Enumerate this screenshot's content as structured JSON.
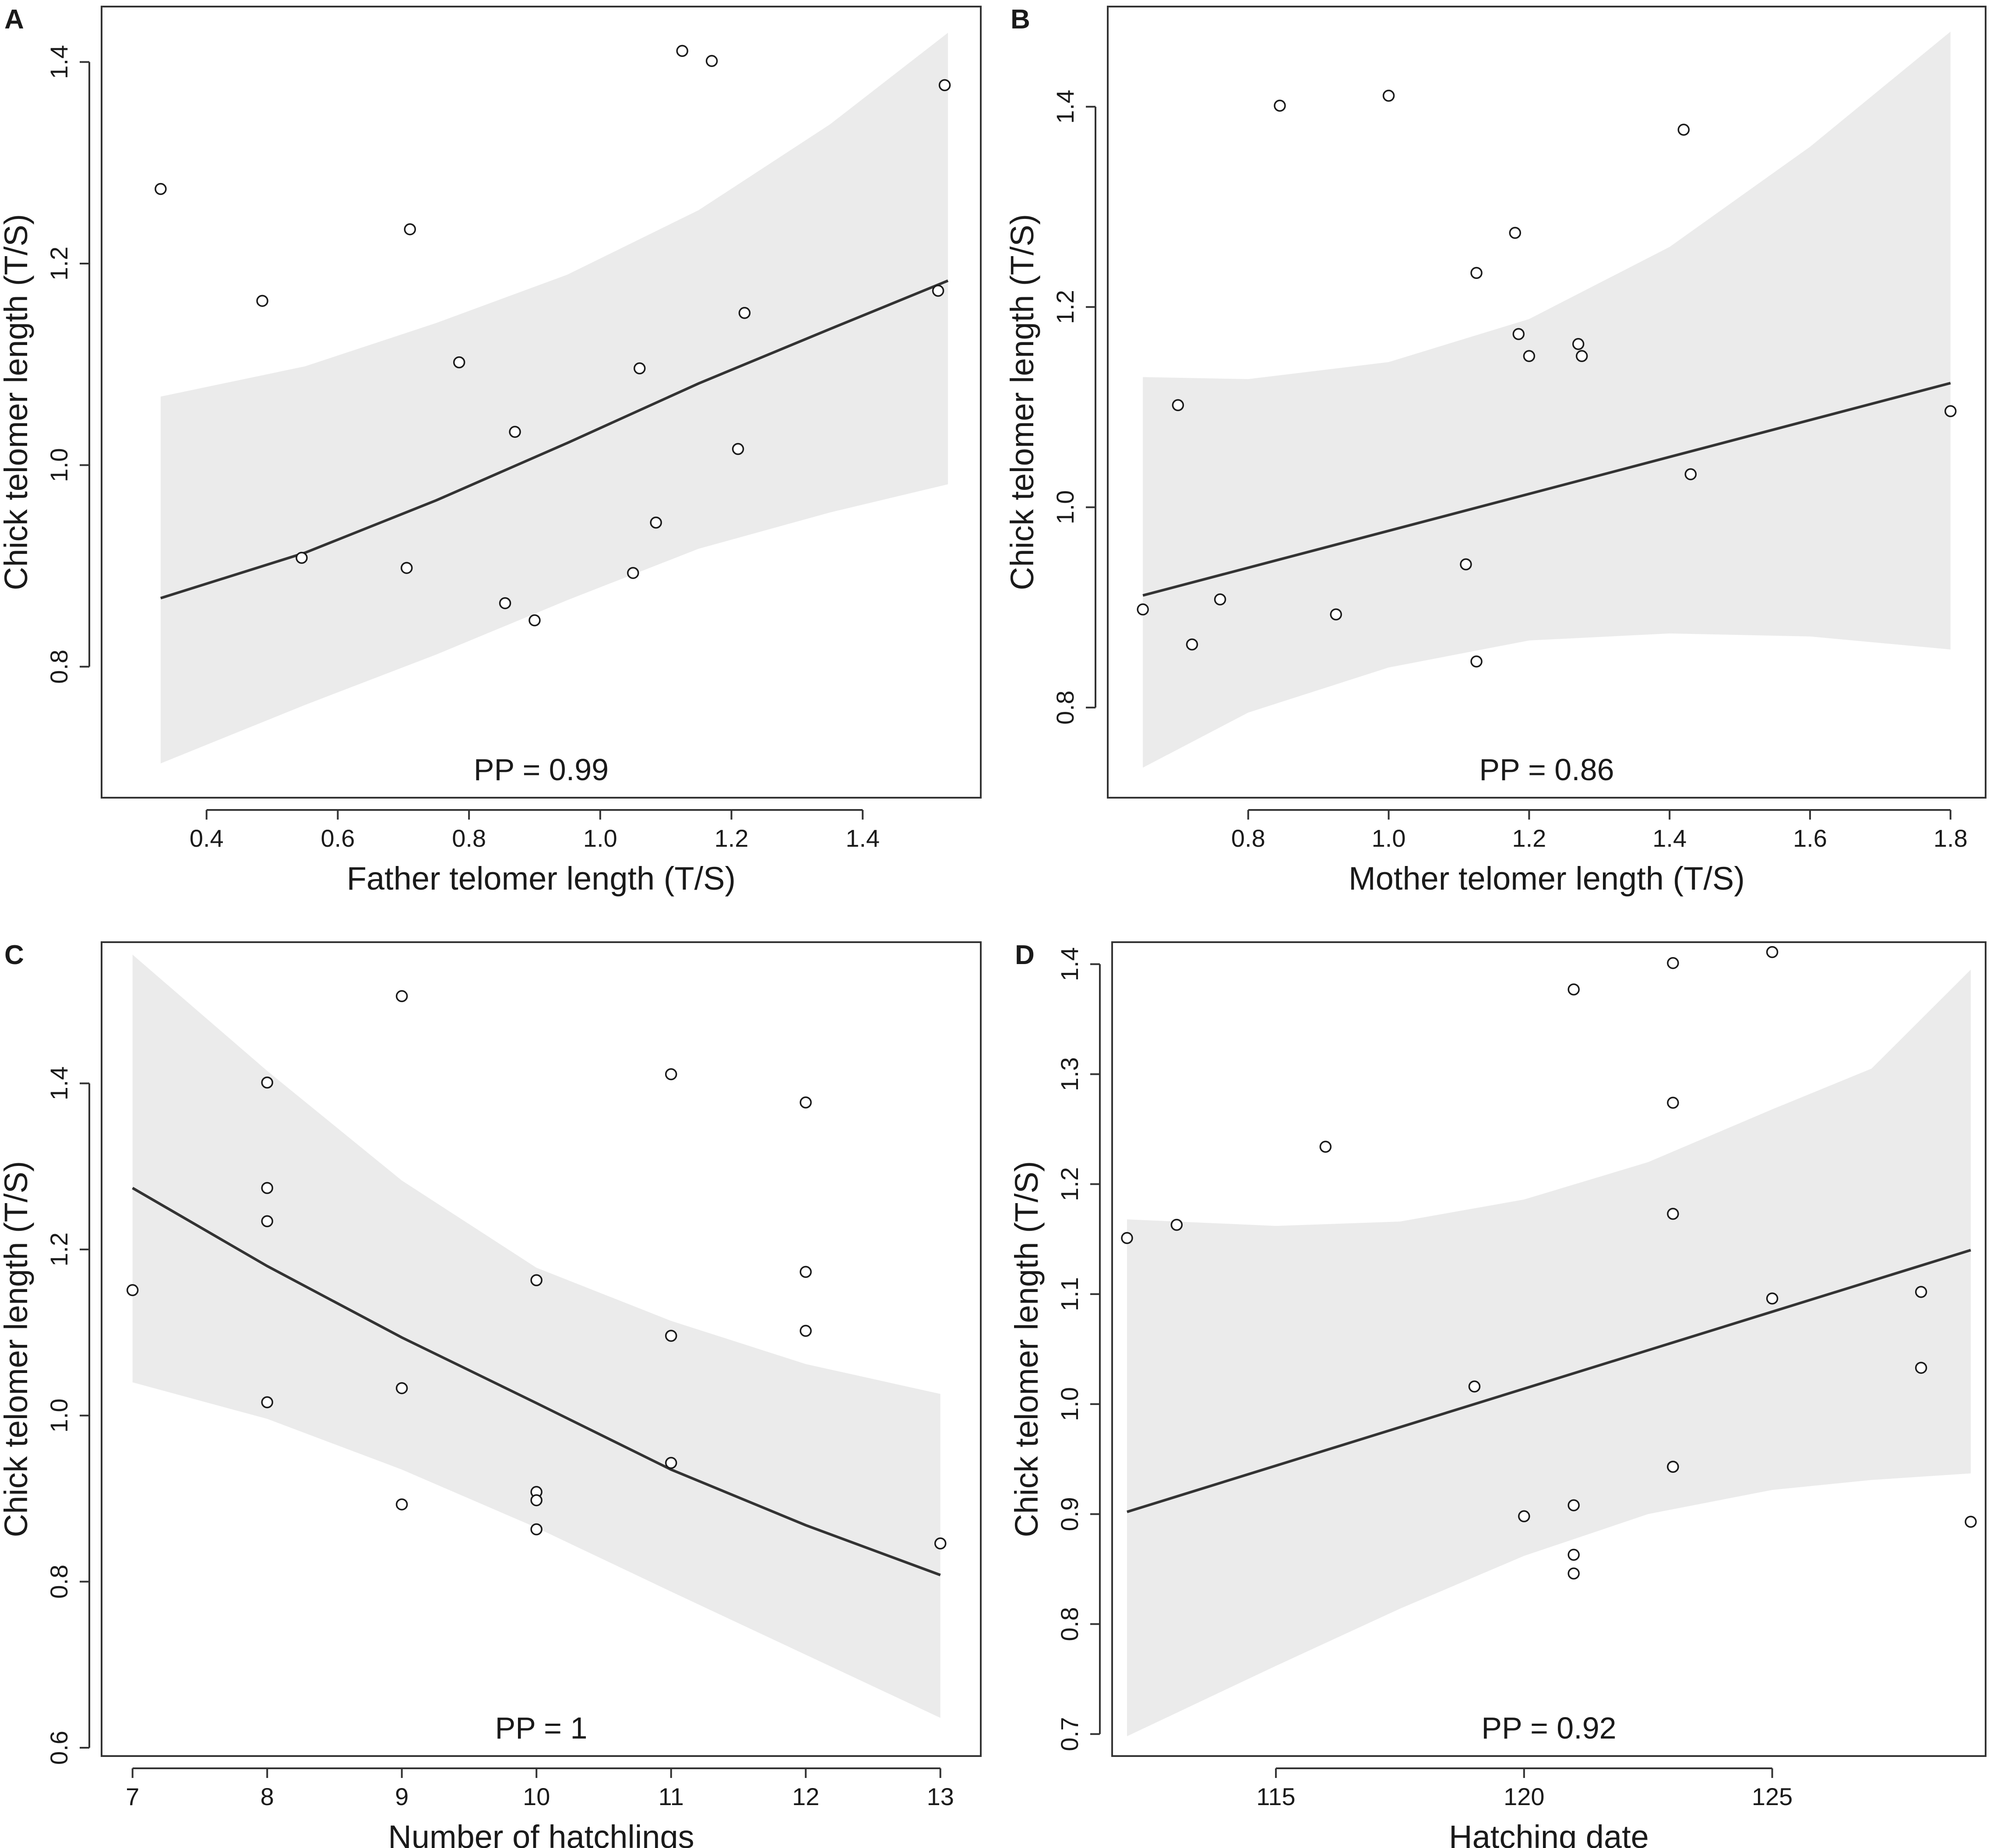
{
  "chart_data": [
    {
      "type": "scatter",
      "panel": "A",
      "xlabel": "Father telomer length (T/S)",
      "ylabel": "Chick telomer length (T/S)",
      "annotation": "PP = 0.99",
      "xlim": [
        0.24,
        1.58
      ],
      "ylim": [
        0.67,
        1.455
      ],
      "xticks": [
        0.4,
        0.6,
        0.8,
        1.0,
        1.2,
        1.4
      ],
      "xtick_labels": [
        "0.4",
        "0.6",
        "0.8",
        "1.0",
        "1.2",
        "1.4"
      ],
      "yticks": [
        0.8,
        1.0,
        1.2,
        1.4
      ],
      "ytick_labels": [
        "0.8",
        "1.0",
        "1.2",
        "1.4"
      ],
      "points": {
        "x": [
          0.33,
          0.485,
          0.545,
          0.705,
          0.71,
          0.785,
          0.855,
          0.87,
          0.9,
          1.05,
          1.06,
          1.085,
          1.125,
          1.17,
          1.21,
          1.22,
          1.515,
          1.525
        ],
        "y": [
          1.274,
          1.163,
          0.908,
          0.898,
          1.234,
          1.102,
          0.863,
          1.033,
          0.846,
          0.893,
          1.096,
          0.943,
          1.411,
          1.401,
          1.016,
          1.151,
          1.173,
          1.377
        ]
      },
      "fit": {
        "x": [
          0.33,
          0.55,
          0.75,
          0.95,
          1.15,
          1.35,
          1.53
        ],
        "y": [
          0.868,
          0.913,
          0.965,
          1.022,
          1.081,
          1.135,
          1.183
        ]
      },
      "ci_upper": {
        "x": [
          0.33,
          0.55,
          0.75,
          0.95,
          1.15,
          1.35,
          1.53
        ],
        "y": [
          1.068,
          1.098,
          1.141,
          1.189,
          1.253,
          1.338,
          1.429
        ]
      },
      "ci_lower": {
        "x": [
          0.33,
          0.55,
          0.75,
          0.95,
          1.15,
          1.35,
          1.53
        ],
        "y": [
          0.704,
          0.762,
          0.812,
          0.866,
          0.917,
          0.953,
          0.981
        ]
      }
    },
    {
      "type": "scatter",
      "panel": "B",
      "xlabel": "Mother telomer length (T/S)",
      "ylabel": "Chick telomer length (T/S)",
      "annotation": "PP = 0.86",
      "xlim": [
        0.6,
        1.85
      ],
      "ylim": [
        0.71,
        1.5
      ],
      "xticks": [
        0.8,
        1.0,
        1.2,
        1.4,
        1.6,
        1.8
      ],
      "xtick_labels": [
        "0.8",
        "1.0",
        "1.2",
        "1.4",
        "1.6",
        "1.8"
      ],
      "yticks": [
        0.8,
        1.0,
        1.2,
        1.4
      ],
      "ytick_labels": [
        "0.8",
        "1.0",
        "1.2",
        "1.4"
      ],
      "points": {
        "x": [
          0.65,
          0.7,
          0.72,
          0.76,
          0.845,
          0.925,
          1.0,
          1.11,
          1.125,
          1.125,
          1.18,
          1.185,
          1.2,
          1.27,
          1.275,
          1.42,
          1.43,
          1.8
        ],
        "y": [
          0.898,
          1.102,
          0.863,
          0.908,
          1.401,
          0.893,
          1.411,
          0.943,
          0.846,
          1.234,
          1.274,
          1.173,
          1.151,
          1.163,
          1.151,
          1.377,
          1.033,
          1.096
        ]
      },
      "fit": {
        "x": [
          0.65,
          1.8
        ],
        "y": [
          0.912,
          1.124
        ]
      },
      "ci_upper": {
        "x": [
          0.65,
          0.8,
          1.0,
          1.2,
          1.4,
          1.6,
          1.8
        ],
        "y": [
          1.13,
          1.128,
          1.145,
          1.188,
          1.26,
          1.36,
          1.475
        ]
      },
      "ci_lower": {
        "x": [
          0.65,
          0.8,
          1.0,
          1.2,
          1.4,
          1.6,
          1.8
        ],
        "y": [
          0.74,
          0.795,
          0.84,
          0.867,
          0.874,
          0.871,
          0.858
        ]
      }
    },
    {
      "type": "scatter",
      "panel": "C",
      "xlabel": "Number of hatchlings",
      "ylabel": "Chick telomer length (T/S)",
      "annotation": "PP = 1",
      "xlim": [
        6.77,
        13.3
      ],
      "ylim": [
        0.59,
        1.57
      ],
      "xticks": [
        7,
        8,
        9,
        10,
        11,
        12,
        13
      ],
      "xtick_labels": [
        "7",
        "8",
        "9",
        "10",
        "11",
        "12",
        "13"
      ],
      "yticks": [
        0.6,
        0.8,
        1.0,
        1.2,
        1.4
      ],
      "ytick_labels": [
        "0.6",
        "0.8",
        "1.0",
        "1.2",
        "1.4"
      ],
      "points": {
        "x": [
          7,
          8,
          8,
          8,
          8,
          9,
          9,
          9,
          10,
          10,
          10,
          10,
          11,
          11,
          11,
          12,
          12,
          12,
          13
        ],
        "y": [
          1.151,
          1.401,
          1.274,
          1.234,
          1.016,
          1.505,
          1.033,
          0.893,
          1.163,
          0.908,
          0.898,
          0.863,
          1.411,
          1.096,
          0.943,
          1.377,
          1.173,
          1.102,
          0.846
        ]
      },
      "fit": {
        "x": [
          7,
          8,
          9,
          10,
          11,
          12,
          13
        ],
        "y": [
          1.274,
          1.18,
          1.094,
          1.015,
          0.935,
          0.868,
          0.808
        ]
      },
      "ci_upper": {
        "x": [
          7,
          8,
          9,
          10,
          11,
          12,
          13
        ],
        "y": [
          1.555,
          1.415,
          1.283,
          1.178,
          1.114,
          1.062,
          1.026
        ]
      },
      "ci_lower": {
        "x": [
          7,
          8,
          9,
          10,
          11,
          12,
          13
        ],
        "y": [
          1.04,
          0.996,
          0.935,
          0.865,
          0.788,
          0.712,
          0.636
        ]
      }
    },
    {
      "type": "scatter",
      "panel": "D",
      "xlabel": "Hatching date",
      "ylabel": "Chick telomer length (T/S)",
      "annotation": "PP = 0.92",
      "xlim": [
        111.7,
        129.3
      ],
      "ylim": [
        0.68,
        1.42
      ],
      "xticks": [
        115,
        120,
        125
      ],
      "xtick_labels": [
        "115",
        "120",
        "125"
      ],
      "yticks": [
        0.7,
        0.8,
        0.9,
        1.0,
        1.1,
        1.2,
        1.3,
        1.4
      ],
      "ytick_labels": [
        "0.7",
        "0.8",
        "0.9",
        "1.0",
        "1.1",
        "1.2",
        "1.3",
        "1.4"
      ],
      "points": {
        "x": [
          112,
          113,
          116,
          119,
          120,
          121,
          121,
          121,
          121,
          123,
          123,
          123,
          123,
          123,
          125,
          125,
          128,
          128,
          129
        ],
        "y": [
          1.151,
          1.163,
          1.234,
          1.016,
          0.898,
          1.377,
          0.908,
          0.863,
          0.846,
          1.401,
          1.274,
          1.173,
          0.943,
          0.943,
          1.411,
          1.096,
          1.102,
          1.033,
          0.893
        ]
      },
      "fit": {
        "x": [
          112,
          129
        ],
        "y": [
          0.902,
          1.14
        ]
      },
      "ci_upper": {
        "x": [
          112,
          115,
          117.5,
          120,
          122.5,
          125,
          127,
          129
        ],
        "y": [
          1.168,
          1.162,
          1.166,
          1.186,
          1.22,
          1.268,
          1.305,
          1.395
        ]
      },
      "ci_lower": {
        "x": [
          112,
          115,
          117.5,
          120,
          122.5,
          125,
          127,
          129
        ],
        "y": [
          0.698,
          0.762,
          0.814,
          0.862,
          0.9,
          0.922,
          0.931,
          0.937
        ]
      }
    }
  ]
}
